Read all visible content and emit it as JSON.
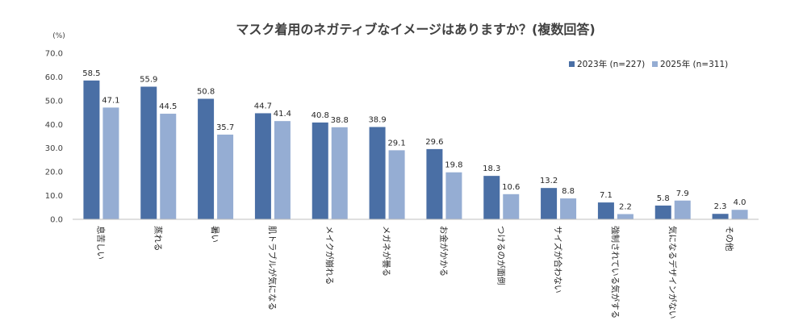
{
  "chart_data": {
    "type": "bar",
    "title": "マスク着用のネガティブなイメージはありますか？(複数回答)",
    "unit_label": "(%)",
    "ylim": [
      0,
      70
    ],
    "yticks": [
      "0.0",
      "10.0",
      "20.0",
      "30.0",
      "40.0",
      "50.0",
      "60.0",
      "70.0"
    ],
    "grid": false,
    "legend_position": "top-right",
    "categories": [
      "息苦しい",
      "蒸れる",
      "暑い",
      "肌トラブルが気になる",
      "メイクが崩れる",
      "メガネが曇る",
      "お金がかかる",
      "つけるのが面倒",
      "サイズが合わない",
      "強制されている気がする",
      "気になるデザインがない",
      "その他"
    ],
    "series": [
      {
        "name": "2023年 (n=227)",
        "color": "#4a6fa5",
        "values": [
          58.5,
          55.9,
          50.8,
          44.7,
          40.8,
          38.9,
          29.6,
          18.3,
          13.2,
          7.1,
          5.8,
          2.3
        ],
        "labels": [
          "58.5",
          "55.9",
          "50.8",
          "44.7",
          "40.8",
          "38.9",
          "29.6",
          "18.3",
          "13.2",
          "7.1",
          "5.8",
          "2.3"
        ]
      },
      {
        "name": "2025年 (n=311)",
        "color": "#95add3",
        "values": [
          47.1,
          44.5,
          35.7,
          41.4,
          38.8,
          29.1,
          19.8,
          10.6,
          8.8,
          2.2,
          7.9,
          4.0
        ],
        "labels": [
          "47.1",
          "44.5",
          "35.7",
          "41.4",
          "38.8",
          "29.1",
          "19.8",
          "10.6",
          "8.8",
          "2.2",
          "7.9",
          "4.0"
        ]
      }
    ]
  }
}
